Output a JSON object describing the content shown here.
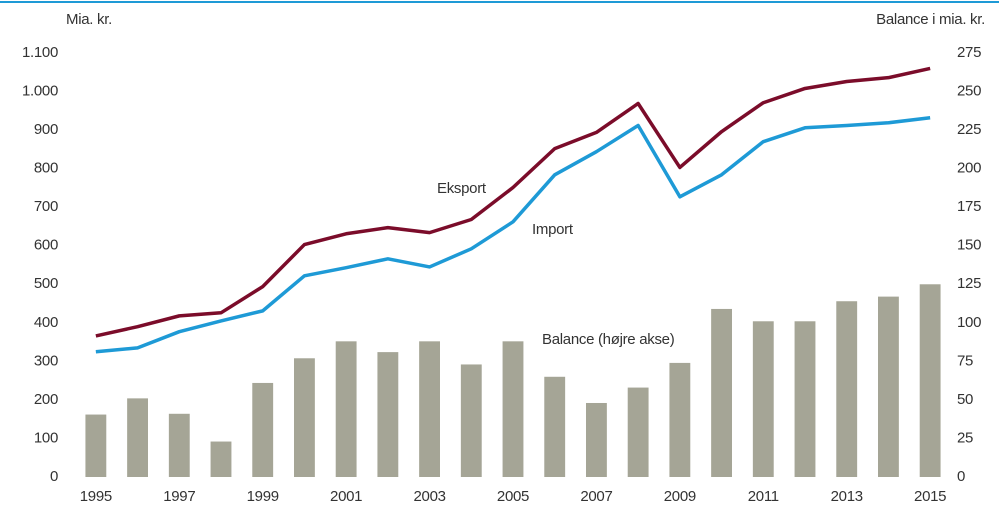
{
  "chart_data": {
    "type": "bar-line",
    "ylabel": "Mia. kr.",
    "y2label": "Balance i mia. kr.",
    "annotations": [
      "Eksport",
      "Import",
      "Balance (højre akse)"
    ],
    "categories": [
      "1995",
      null,
      "1997",
      null,
      "1999",
      null,
      "2001",
      null,
      "2003",
      null,
      "2005",
      null,
      "2007",
      null,
      "2009",
      null,
      "2011",
      null,
      "2013",
      null,
      "2015"
    ],
    "series": [
      {
        "name": "Eksport",
        "type": "line",
        "color": "#7b0c2a",
        "values": [
          366,
          390,
          418,
          426,
          494,
          603,
          631,
          647,
          634,
          668,
          751,
          852,
          894,
          969,
          803,
          896,
          971,
          1008,
          1026,
          1036,
          1060
        ]
      },
      {
        "name": "Import",
        "type": "line",
        "color": "#1e9ad6",
        "values": [
          325,
          335,
          377,
          405,
          431,
          522,
          543,
          566,
          545,
          592,
          662,
          784,
          844,
          912,
          727,
          784,
          870,
          906,
          912,
          919,
          932
        ]
      },
      {
        "name": "Balance",
        "type": "bar",
        "axis": "y2",
        "color": "#a5a596",
        "values": [
          40.5,
          51,
          41,
          23,
          61,
          77,
          88,
          81,
          88,
          73,
          88,
          65,
          48,
          58,
          74,
          109,
          101,
          101,
          114,
          117,
          125
        ]
      }
    ],
    "ylim": [
      0,
      1100
    ],
    "yticks": [
      0,
      100,
      200,
      300,
      400,
      500,
      600,
      700,
      800,
      900,
      {
        "value": 1000,
        "label": "1.000"
      },
      {
        "value": 1100,
        "label": "1.100"
      }
    ],
    "y2lim": [
      0,
      275
    ],
    "y2ticks": [
      0,
      25,
      50,
      75,
      100,
      125,
      150,
      175,
      200,
      225,
      250,
      275
    ]
  }
}
